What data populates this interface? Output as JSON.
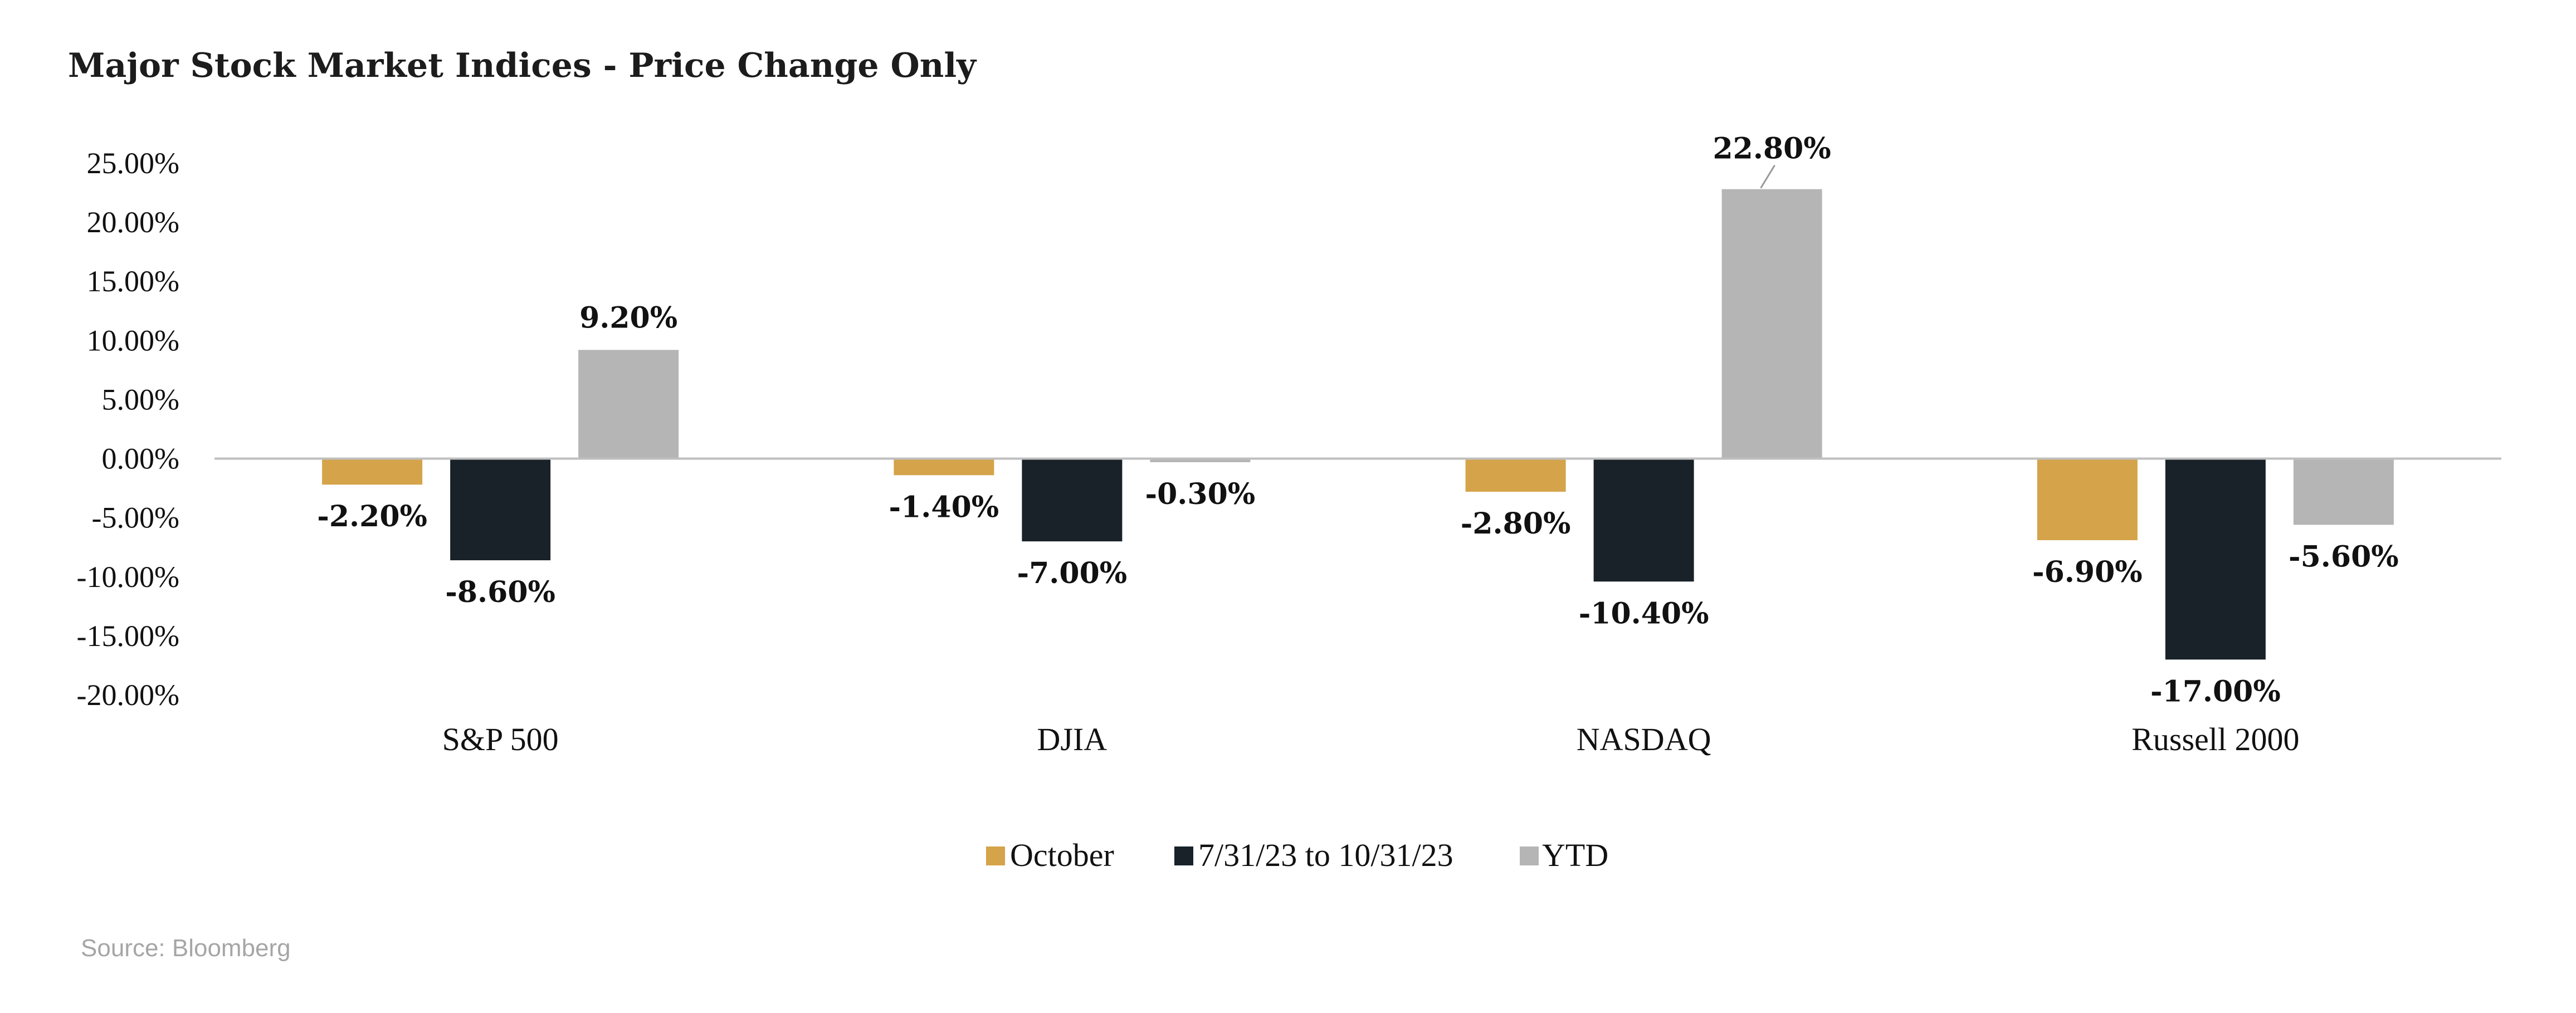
{
  "chart_data": {
    "type": "bar",
    "title": "Major Stock Market Indices - Price Change Only",
    "categories": [
      "S&P 500",
      "DJIA",
      "NASDAQ",
      "Russell 2000"
    ],
    "series": [
      {
        "name": "October",
        "color": "#d5a34a",
        "values": [
          -2.2,
          -1.4,
          -2.8,
          -6.9
        ],
        "labels": [
          "-2.20%",
          "-1.40%",
          "-2.80%",
          "-6.90%"
        ]
      },
      {
        "name": "7/31/23 to 10/31/23",
        "color": "#182228",
        "values": [
          -8.6,
          -7.0,
          -10.4,
          -17.0
        ],
        "labels": [
          "-8.60%",
          "-7.00%",
          "-10.40%",
          "-17.00%"
        ]
      },
      {
        "name": "YTD",
        "color": "#b5b5b5",
        "values": [
          9.2,
          -0.3,
          22.8,
          -5.6
        ],
        "labels": [
          "9.20%",
          "-0.30%",
          "22.80%",
          "-5.60%"
        ]
      }
    ],
    "ylim": [
      -20,
      25
    ],
    "yticks": [
      25,
      20,
      15,
      10,
      5,
      0,
      -5,
      -10,
      -15,
      -20
    ],
    "ytick_labels": [
      "25.00%",
      "20.00%",
      "15.00%",
      "10.00%",
      "5.00%",
      "0.00%",
      "-5.00%",
      "-10.00%",
      "-15.00%",
      "-20.00%"
    ],
    "xlabel": "",
    "ylabel": "",
    "grid": false,
    "legend_position": "bottom",
    "source": "Source: Bloomberg"
  }
}
